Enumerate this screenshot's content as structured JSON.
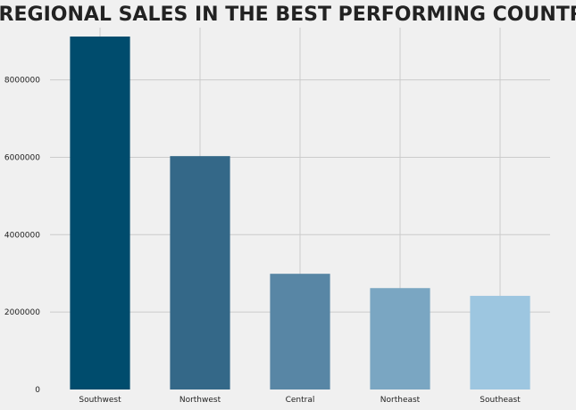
{
  "chart_data": {
    "type": "bar",
    "title": "REGIONAL SALES IN THE BEST PERFORMING COUNTRY",
    "xlabel": "",
    "ylabel": "",
    "categories": [
      "Southwest",
      "Northwest",
      "Central",
      "Northeast",
      "Southeast"
    ],
    "values": [
      9120000,
      6030000,
      2990000,
      2620000,
      2420000
    ],
    "bar_colors": [
      "#004c6d",
      "#346888",
      "#5886a5",
      "#7aa6c2",
      "#9dc6e0"
    ],
    "ylim": [
      0,
      9350000
    ],
    "y_ticks": [
      0,
      2000000,
      4000000,
      6000000,
      8000000
    ],
    "y_tick_labels": [
      "0",
      "2000000",
      "4000000",
      "6000000",
      "8000000"
    ],
    "grid": true,
    "background_color": "#f0f0f0",
    "grid_color": "#cbcbcb"
  }
}
